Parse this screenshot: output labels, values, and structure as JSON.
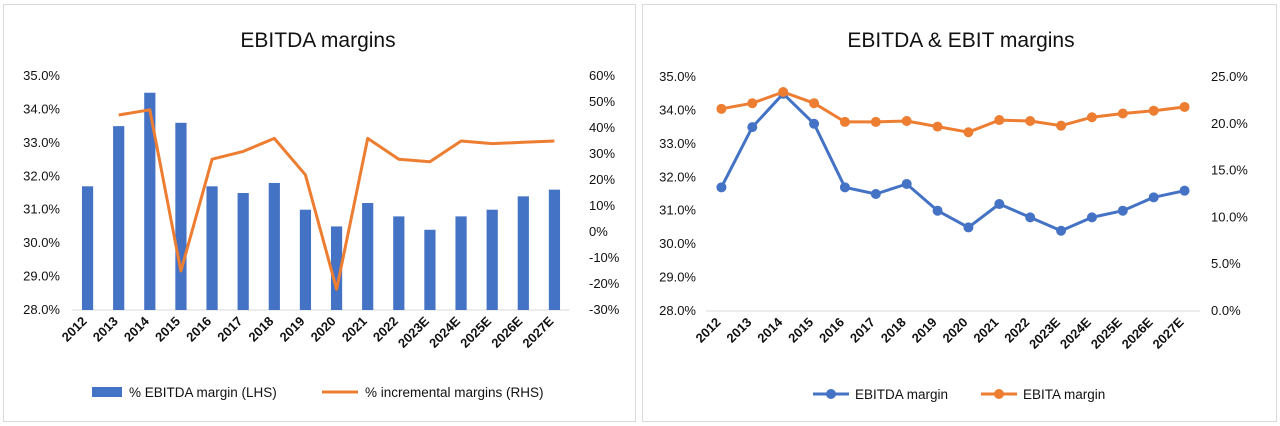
{
  "colors": {
    "blue": "#4472c4",
    "orange": "#ed7d31",
    "grid": "#d9d9d9"
  },
  "chart_data": [
    {
      "type": "bar+line",
      "title": "EBITDA margins",
      "categories": [
        "2012",
        "2013",
        "2014",
        "2015",
        "2016",
        "2017",
        "2018",
        "2019",
        "2020",
        "2021",
        "2022",
        "2023E",
        "2024E",
        "2025E",
        "2026E",
        "2027E"
      ],
      "series": [
        {
          "name": "% EBITDA margin (LHS)",
          "type": "bar",
          "axis": "left",
          "values": [
            31.7,
            33.5,
            34.5,
            33.6,
            31.7,
            31.5,
            31.8,
            31.0,
            30.5,
            31.2,
            30.8,
            30.4,
            30.8,
            31.0,
            31.4,
            31.6
          ]
        },
        {
          "name": "% incremental margins (RHS)",
          "type": "line",
          "axis": "right",
          "values": [
            null,
            45,
            47,
            -15,
            28,
            31,
            36,
            22,
            -22,
            36,
            28,
            27,
            35,
            34,
            34.5,
            35
          ]
        }
      ],
      "y_left": {
        "min": 28,
        "max": 35,
        "step": 1,
        "ticks": [
          "28.0%",
          "29.0%",
          "30.0%",
          "31.0%",
          "32.0%",
          "33.0%",
          "34.0%",
          "35.0%"
        ]
      },
      "y_right": {
        "min": -30,
        "max": 60,
        "step": 10,
        "ticks": [
          "-30%",
          "-20%",
          "-10%",
          "0%",
          "10%",
          "20%",
          "30%",
          "40%",
          "50%",
          "60%"
        ]
      },
      "legend_position": "bottom",
      "grid": false
    },
    {
      "type": "line",
      "title": "EBITDA & EBIT margins",
      "categories": [
        "2012",
        "2013",
        "2014",
        "2015",
        "2016",
        "2017",
        "2018",
        "2019",
        "2020",
        "2021",
        "2022",
        "2023E",
        "2024E",
        "2025E",
        "2026E",
        "2027E"
      ],
      "series": [
        {
          "name": "EBITDA margin",
          "type": "line",
          "axis": "left",
          "values": [
            31.7,
            33.5,
            34.5,
            33.6,
            31.7,
            31.5,
            31.8,
            31.0,
            30.5,
            31.2,
            30.8,
            30.4,
            30.8,
            31.0,
            31.4,
            31.6
          ]
        },
        {
          "name": "EBITA margin",
          "type": "line",
          "axis": "right",
          "values": [
            21.6,
            22.2,
            23.4,
            22.2,
            20.2,
            20.2,
            20.3,
            19.7,
            19.1,
            20.4,
            20.3,
            19.8,
            20.7,
            21.1,
            21.4,
            21.8
          ]
        }
      ],
      "y_left": {
        "min": 28,
        "max": 35,
        "step": 1,
        "ticks": [
          "28.0%",
          "29.0%",
          "30.0%",
          "31.0%",
          "32.0%",
          "33.0%",
          "34.0%",
          "35.0%"
        ]
      },
      "y_right": {
        "min": 0,
        "max": 25,
        "step": 5,
        "ticks": [
          "0.0%",
          "5.0%",
          "10.0%",
          "15.0%",
          "20.0%",
          "25.0%"
        ]
      },
      "legend_position": "bottom",
      "grid": false
    }
  ]
}
